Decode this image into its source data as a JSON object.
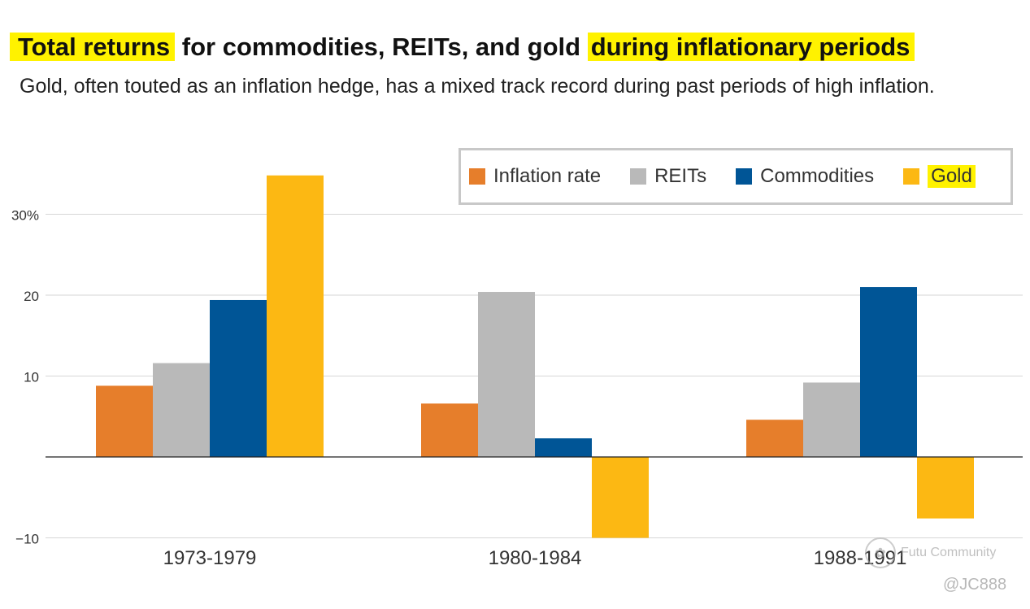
{
  "title": {
    "highlight_1": "Total returns",
    "middle": " for commodities, REITs, and gold ",
    "highlight_2": "during inflationary periods"
  },
  "subtitle": "Gold, often touted as an inflation hedge, has a mixed track record during past periods of high inflation.",
  "watermark": {
    "text": "Futu Community",
    "handle": "@JC888"
  },
  "chart_data": {
    "type": "bar",
    "title": "Total returns for commodities, REITs, and gold during inflationary periods",
    "categories": [
      "1973-1979",
      "1980-1984",
      "1988-1991"
    ],
    "series": [
      {
        "name": "Inflation rate",
        "color": "#e67e2b",
        "values": [
          8.8,
          6.6,
          4.6
        ]
      },
      {
        "name": "REITs",
        "color": "#b9b9b9",
        "values": [
          11.6,
          20.4,
          9.2
        ]
      },
      {
        "name": "Commodities",
        "color": "#005596",
        "values": [
          19.4,
          2.3,
          21.0
        ]
      },
      {
        "name": "Gold",
        "color": "#fcb813",
        "values": [
          34.8,
          -10.0,
          -7.6
        ]
      }
    ],
    "yticks": [
      {
        "value": 30,
        "label": "30%"
      },
      {
        "value": 20,
        "label": "20"
      },
      {
        "value": 10,
        "label": "10"
      },
      {
        "value": -10,
        "label": "−10"
      }
    ],
    "ylim": [
      -10,
      35
    ],
    "xlabel": "",
    "ylabel": "",
    "legend": "top-right",
    "grid": true
  }
}
